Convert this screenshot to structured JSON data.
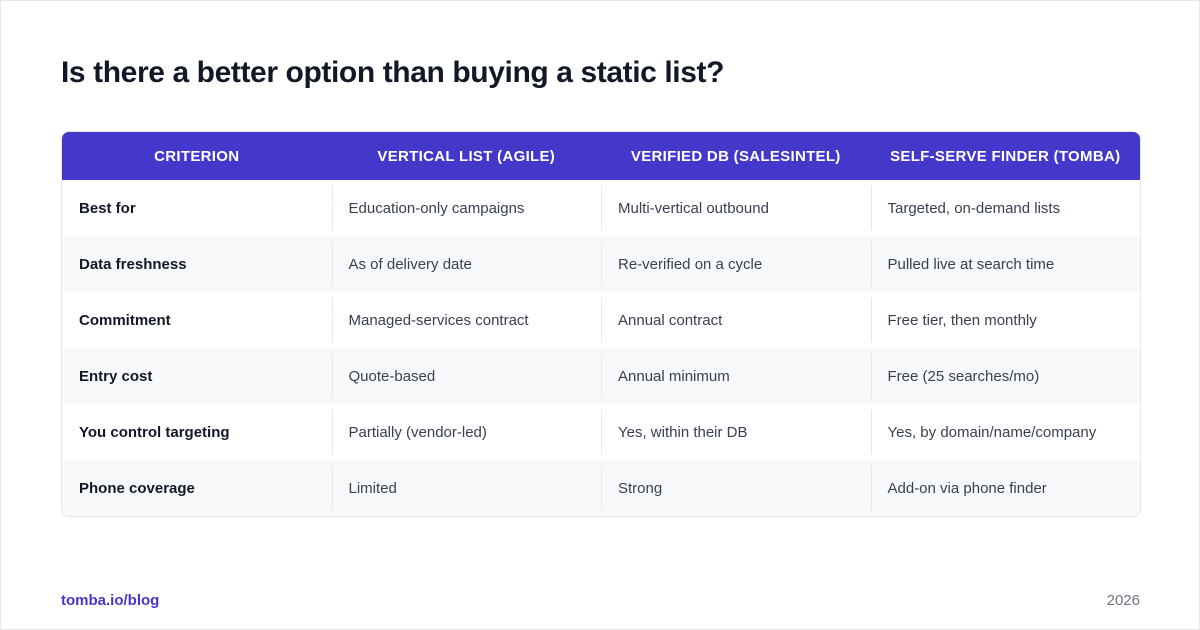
{
  "title": "Is there a better option than buying a static list?",
  "table": {
    "headers": [
      "CRITERION",
      "VERTICAL LIST (AGILE)",
      "VERIFIED DB (SALESINTEL)",
      "SELF-SERVE FINDER (TOMBA)"
    ],
    "rows": [
      [
        "Best for",
        "Education-only campaigns",
        "Multi-vertical outbound",
        "Targeted, on-demand lists"
      ],
      [
        "Data freshness",
        "As of delivery date",
        "Re-verified on a cycle",
        "Pulled live at search time"
      ],
      [
        "Commitment",
        "Managed-services contract",
        "Annual contract",
        "Free tier, then monthly"
      ],
      [
        "Entry cost",
        "Quote-based",
        "Annual minimum",
        "Free (25 searches/mo)"
      ],
      [
        "You control targeting",
        "Partially (vendor-led)",
        "Yes, within their DB",
        "Yes, by domain/name/company"
      ],
      [
        "Phone coverage",
        "Limited",
        "Strong",
        "Add-on via phone finder"
      ]
    ]
  },
  "footer": {
    "link": "tomba.io/blog",
    "year": "2026"
  },
  "colors": {
    "header_bg": "#4338ca",
    "accent": "#4338ca",
    "title": "#111827",
    "alt_row": "#f8f9fb"
  }
}
